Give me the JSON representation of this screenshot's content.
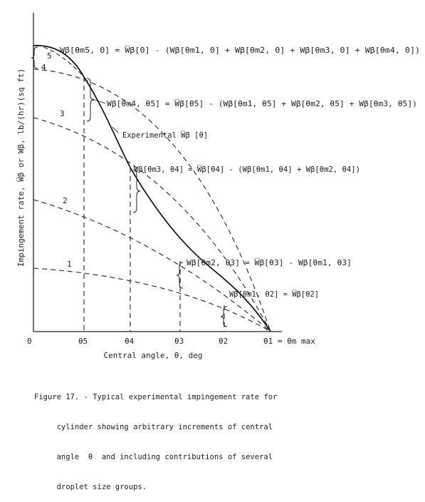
{
  "figure": {
    "caption_lines": [
      "Figure 17. - Typical experimental impingement rate for",
      "     cylinder showing arbitrary increments of central",
      "     angle  θ  and including contributions of several",
      "     droplet size groups."
    ]
  },
  "chart_data": {
    "type": "line",
    "title": "",
    "xlabel": "Central angle, θ, deg",
    "ylabel": "Impingement rate, W̅β  or  Wβ, lb/(hr)(sq ft)",
    "origin_label": "0",
    "x_ticks": [
      "θ5",
      "θ4",
      "θ3",
      "θ2",
      "θ1 = θm max"
    ],
    "experimental_curve_label": "Experimental  W̅β [θ]",
    "curve_labels": [
      "1",
      "2",
      "3",
      "4",
      "5"
    ],
    "annotations": [
      "Wβ[θm5, 0] = W̅β[0] - (Wβ[θm1, 0] + Wβ[θm2, 0] + Wβ[θm3, 0] + Wβ[θm4, 0])",
      "Wβ[θm4, θ5] = W̅β[θ5] - (Wβ[θm1, θ5] + Wβ[θm2, θ5] + Wβ[θm3, θ5])",
      "Wβ[θm3, θ4] = W̅β[θ4] - (Wβ[θm1, θ4] + Wβ[θm2, θ4])",
      "Wβ[θm2, θ3] = W̅β[θ3] - Wβ[θm1, θ3]",
      "Wβ[θm1, θ2] = W̅β[θ2]"
    ],
    "grid": false,
    "legend": "none",
    "line_styles": {
      "experimental": "solid",
      "size_groups": "dashed",
      "increments": "dashed vertical"
    }
  }
}
